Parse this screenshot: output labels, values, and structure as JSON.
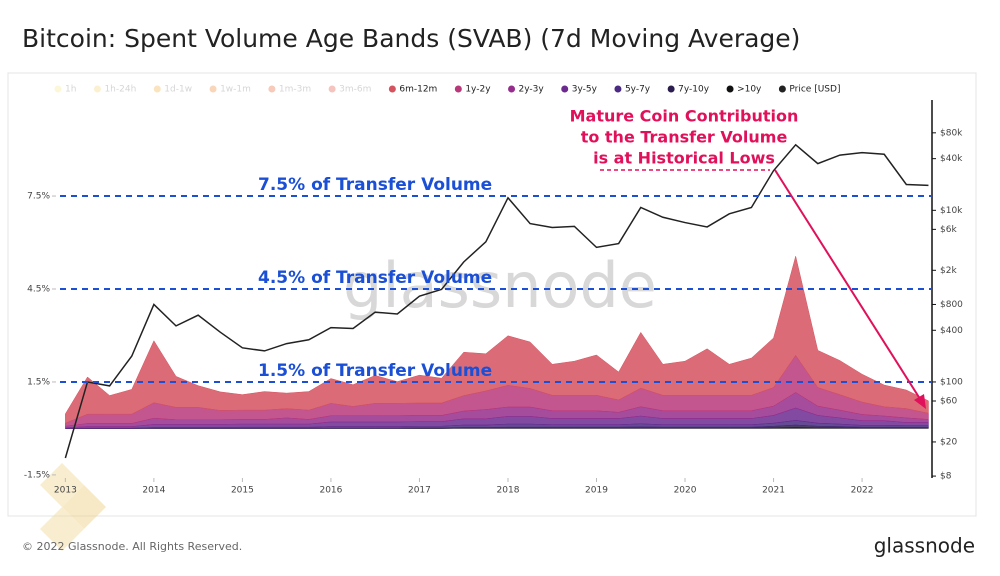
{
  "chart_data": {
    "type": "area",
    "title": "Bitcoin: Spent Volume Age Bands (SVAB) (7d Moving Average)",
    "watermark": "glassnode",
    "hidden_series": [
      {
        "name": "1h",
        "color": "#f7e98e"
      },
      {
        "name": "1h-24h",
        "color": "#f5d77a"
      },
      {
        "name": "1d-1w",
        "color": "#f2b34a"
      },
      {
        "name": "1w-1m",
        "color": "#f08c3a"
      },
      {
        "name": "1m-3m",
        "color": "#ec6a3c"
      },
      {
        "name": "3m-6m",
        "color": "#e35a4a"
      }
    ],
    "x": [
      2013,
      2013.25,
      2013.5,
      2013.75,
      2014,
      2014.25,
      2014.5,
      2014.75,
      2015,
      2015.25,
      2015.5,
      2015.75,
      2016,
      2016.25,
      2016.5,
      2016.75,
      2017,
      2017.25,
      2017.5,
      2017.75,
      2018,
      2018.25,
      2018.5,
      2018.75,
      2019,
      2019.25,
      2019.5,
      2019.75,
      2020,
      2020.25,
      2020.5,
      2020.75,
      2021,
      2021.25,
      2021.5,
      2021.75,
      2022,
      2022.25,
      2022.5,
      2022.75
    ],
    "series": [
      {
        "name": "6m-12m",
        "color": "#d5525f",
        "values": [
          0.3,
          1.2,
          0.6,
          0.8,
          2.0,
          1.0,
          0.7,
          0.6,
          0.5,
          0.6,
          0.5,
          0.6,
          0.8,
          0.7,
          0.9,
          0.7,
          0.9,
          0.8,
          1.4,
          1.2,
          1.6,
          1.5,
          1.0,
          1.1,
          1.3,
          0.9,
          1.8,
          1.0,
          1.1,
          1.5,
          1.0,
          1.2,
          1.6,
          3.2,
          1.2,
          1.1,
          0.9,
          0.7,
          0.6,
          0.4
        ]
      },
      {
        "name": "1y-2y",
        "color": "#b8387a",
        "values": [
          0.1,
          0.3,
          0.3,
          0.3,
          0.5,
          0.4,
          0.4,
          0.3,
          0.3,
          0.3,
          0.3,
          0.3,
          0.4,
          0.3,
          0.4,
          0.4,
          0.4,
          0.4,
          0.5,
          0.6,
          0.7,
          0.6,
          0.5,
          0.5,
          0.5,
          0.4,
          0.6,
          0.5,
          0.5,
          0.5,
          0.5,
          0.5,
          0.6,
          1.2,
          0.6,
          0.5,
          0.4,
          0.3,
          0.3,
          0.2
        ]
      },
      {
        "name": "2y-3y",
        "color": "#962d8c",
        "values": [
          0.05,
          0.1,
          0.1,
          0.1,
          0.2,
          0.15,
          0.15,
          0.15,
          0.15,
          0.15,
          0.2,
          0.15,
          0.2,
          0.2,
          0.2,
          0.2,
          0.2,
          0.2,
          0.25,
          0.3,
          0.3,
          0.3,
          0.25,
          0.25,
          0.25,
          0.2,
          0.3,
          0.25,
          0.25,
          0.25,
          0.25,
          0.25,
          0.3,
          0.5,
          0.3,
          0.25,
          0.2,
          0.15,
          0.15,
          0.1
        ]
      },
      {
        "name": "3y-5y",
        "color": "#6c2a8f",
        "values": [
          0.02,
          0.05,
          0.05,
          0.05,
          0.1,
          0.1,
          0.1,
          0.1,
          0.1,
          0.1,
          0.1,
          0.1,
          0.15,
          0.15,
          0.15,
          0.15,
          0.15,
          0.15,
          0.2,
          0.2,
          0.25,
          0.25,
          0.2,
          0.2,
          0.2,
          0.2,
          0.25,
          0.2,
          0.2,
          0.2,
          0.2,
          0.2,
          0.25,
          0.4,
          0.25,
          0.2,
          0.15,
          0.15,
          0.1,
          0.1
        ]
      },
      {
        "name": "5y-7y",
        "color": "#4a2a82",
        "values": [
          0,
          0.01,
          0.01,
          0.01,
          0.02,
          0.02,
          0.02,
          0.02,
          0.03,
          0.03,
          0.03,
          0.03,
          0.05,
          0.05,
          0.05,
          0.05,
          0.05,
          0.05,
          0.08,
          0.08,
          0.1,
          0.1,
          0.08,
          0.08,
          0.08,
          0.08,
          0.1,
          0.08,
          0.08,
          0.08,
          0.08,
          0.08,
          0.1,
          0.15,
          0.1,
          0.08,
          0.06,
          0.06,
          0.05,
          0.05
        ]
      },
      {
        "name": "7y-10y",
        "color": "#2b1d4d",
        "values": [
          0,
          0,
          0,
          0,
          0.01,
          0.01,
          0.01,
          0.01,
          0.01,
          0.01,
          0.01,
          0.01,
          0.01,
          0.01,
          0.01,
          0.01,
          0.02,
          0.02,
          0.02,
          0.02,
          0.03,
          0.03,
          0.03,
          0.03,
          0.03,
          0.03,
          0.04,
          0.03,
          0.03,
          0.03,
          0.03,
          0.03,
          0.05,
          0.08,
          0.05,
          0.04,
          0.03,
          0.03,
          0.03,
          0.03
        ]
      },
      {
        "name": ">10y",
        "color": "#111111",
        "values": [
          0,
          0,
          0,
          0,
          0,
          0,
          0,
          0,
          0,
          0,
          0,
          0,
          0,
          0,
          0,
          0,
          0,
          0,
          0.01,
          0.01,
          0.01,
          0.01,
          0.01,
          0.01,
          0.01,
          0.01,
          0.01,
          0.01,
          0.01,
          0.01,
          0.01,
          0.01,
          0.02,
          0.03,
          0.02,
          0.02,
          0.01,
          0.01,
          0.01,
          0.01
        ]
      },
      {
        "name": "Price [USD]",
        "color": "#222222",
        "type": "line",
        "axis": "y2",
        "values": [
          13,
          100,
          90,
          200,
          800,
          450,
          600,
          380,
          250,
          230,
          280,
          310,
          430,
          420,
          650,
          620,
          1000,
          1200,
          2500,
          4300,
          14000,
          7000,
          6300,
          6500,
          3700,
          4100,
          10800,
          8300,
          7200,
          6400,
          9100,
          10800,
          29000,
          58000,
          35000,
          44000,
          47000,
          45000,
          20000,
          19500
        ]
      }
    ],
    "xlim": [
      2012.77,
      2022.79
    ],
    "xticks": [
      2013,
      2014,
      2015,
      2016,
      2017,
      2018,
      2019,
      2020,
      2021,
      2022
    ],
    "ylim": [
      -1.6,
      10.6
    ],
    "yticks": [
      {
        "value": -1.5,
        "label": "-1.5%"
      },
      {
        "value": 1.5,
        "label": "1.5%"
      },
      {
        "value": 4.5,
        "label": "4.5%"
      },
      {
        "value": 7.5,
        "label": "7.5%"
      }
    ],
    "y2lim": [
      7.6,
      193000
    ],
    "y2_log": true,
    "y2ticks": [
      {
        "value": 8,
        "label": "$8"
      },
      {
        "value": 20,
        "label": "$20"
      },
      {
        "value": 60,
        "label": "$60"
      },
      {
        "value": 100,
        "label": "$100"
      },
      {
        "value": 400,
        "label": "$400"
      },
      {
        "value": 800,
        "label": "$800"
      },
      {
        "value": 2000,
        "label": "$2k"
      },
      {
        "value": 6000,
        "label": "$6k"
      },
      {
        "value": 10000,
        "label": "$10k"
      },
      {
        "value": 40000,
        "label": "$40k"
      },
      {
        "value": 80000,
        "label": "$80k"
      }
    ],
    "reference_lines": [
      {
        "value": 7.5,
        "label": "7.5% of Transfer Volume",
        "color": "#1a4fd6"
      },
      {
        "value": 4.5,
        "label": "4.5% of Transfer Volume",
        "color": "#1a4fd6"
      },
      {
        "value": 1.5,
        "label": "1.5% of Transfer Volume",
        "color": "#1a4fd6"
      }
    ],
    "annotation": [
      "Mature Coin Contribution",
      "to the Transfer Volume",
      "is at Historical Lows"
    ]
  },
  "footer": {
    "copyright": "© 2022 Glassnode. All Rights Reserved.",
    "brand": "glassnode"
  }
}
